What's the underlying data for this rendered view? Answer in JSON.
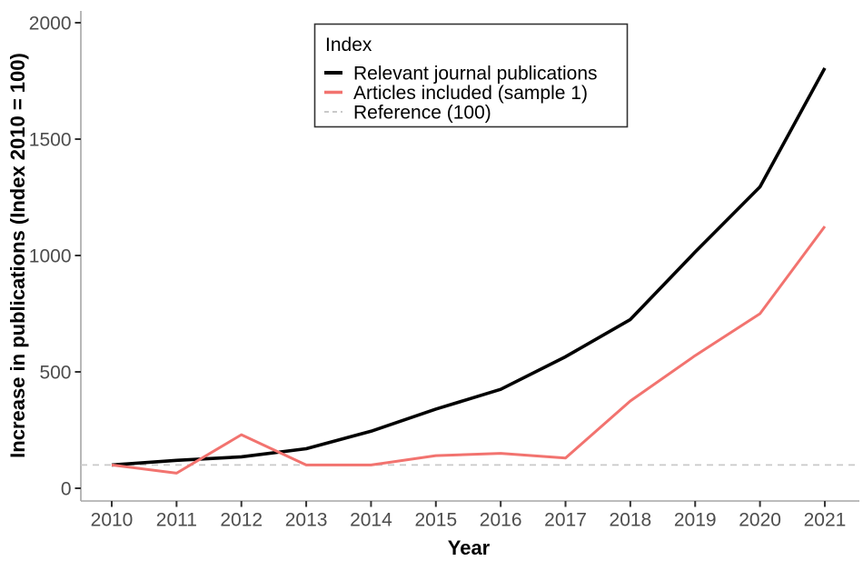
{
  "chart_data": {
    "type": "line",
    "title": "",
    "xlabel": "Year",
    "ylabel": "Increase in publications (Index 2010 = 100)",
    "x": [
      2010,
      2011,
      2012,
      2013,
      2014,
      2015,
      2016,
      2017,
      2018,
      2019,
      2020,
      2021
    ],
    "series": [
      {
        "name": "Relevant journal publications",
        "color": "#000000",
        "style": "solid",
        "values": [
          100,
          120,
          135,
          170,
          245,
          340,
          425,
          565,
          725,
          1015,
          1295,
          1805
        ]
      },
      {
        "name": "Articles included (sample 1)",
        "color": "#F2736F",
        "style": "solid",
        "values": [
          100,
          65,
          230,
          100,
          100,
          140,
          150,
          130,
          375,
          570,
          750,
          1125
        ]
      },
      {
        "name": "Reference (100)",
        "color": "#C9C9C9",
        "style": "dashed",
        "reference_value": 100
      }
    ],
    "ylim": [
      0,
      2000
    ],
    "yticks": [
      0,
      500,
      1000,
      1500,
      2000
    ],
    "xticks": [
      2010,
      2011,
      2012,
      2013,
      2014,
      2015,
      2016,
      2017,
      2018,
      2019,
      2020,
      2021
    ],
    "grid": false,
    "legend": {
      "title": "Index",
      "position": "top-center",
      "entries": [
        {
          "label": "Relevant journal publications",
          "color": "#000000",
          "style": "solid"
        },
        {
          "label": "Articles included (sample 1)",
          "color": "#F2736F",
          "style": "solid"
        },
        {
          "label": "Reference (100)",
          "color": "#C9C9C9",
          "style": "dashed"
        }
      ]
    },
    "axis_colors": {
      "axis_line": "#a6a6a6",
      "tick_mark": "#333333",
      "tick_label": "#4d4d4d"
    }
  }
}
